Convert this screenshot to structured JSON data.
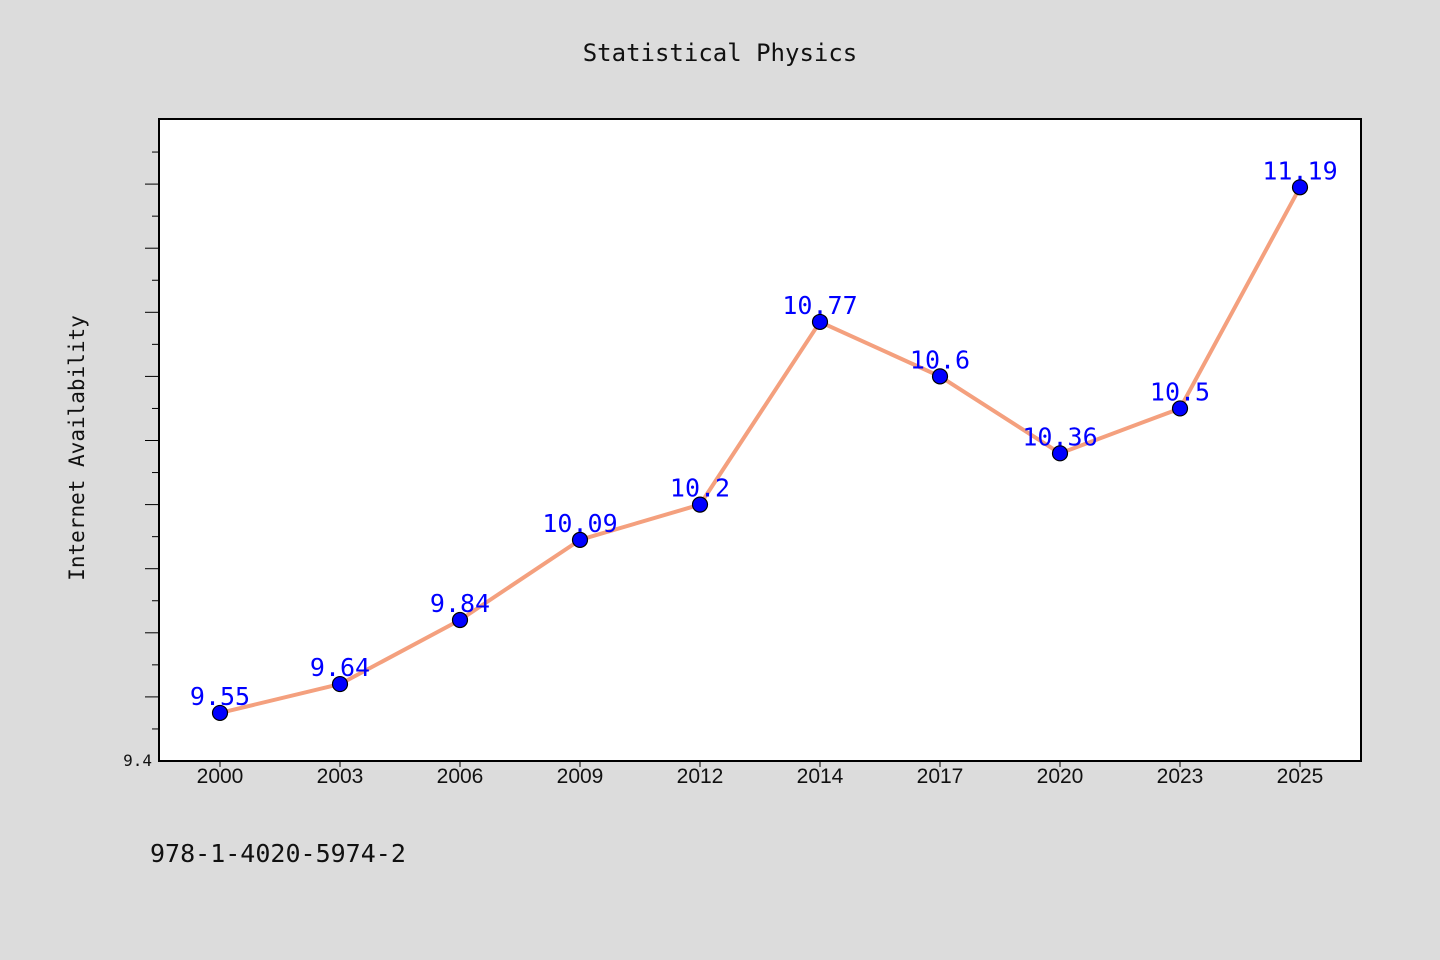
{
  "isbn": "978-1-4020-5974-2",
  "chart_data": {
    "type": "line",
    "title": "Statistical Physics",
    "xlabel": "",
    "ylabel": "Internet Availability",
    "categories": [
      "2000",
      "2003",
      "2006",
      "2009",
      "2012",
      "2014",
      "2017",
      "2020",
      "2023",
      "2025"
    ],
    "series": [
      {
        "values": [
          9.55,
          9.64,
          9.84,
          10.09,
          10.2,
          10.77,
          10.6,
          10.36,
          10.5,
          11.19
        ],
        "labels": [
          "9.55",
          "9.64",
          "9.84",
          "10.09",
          "10.2",
          "10.77",
          "10.6",
          "10.36",
          "10.5",
          "11.19"
        ]
      }
    ],
    "ylim": [
      9.4,
      11.4
    ],
    "y_tick_label": "9.4",
    "grid": false,
    "line_color": "#f4a07e",
    "marker_color": "#0000ff",
    "label_color": "#0000ff"
  }
}
